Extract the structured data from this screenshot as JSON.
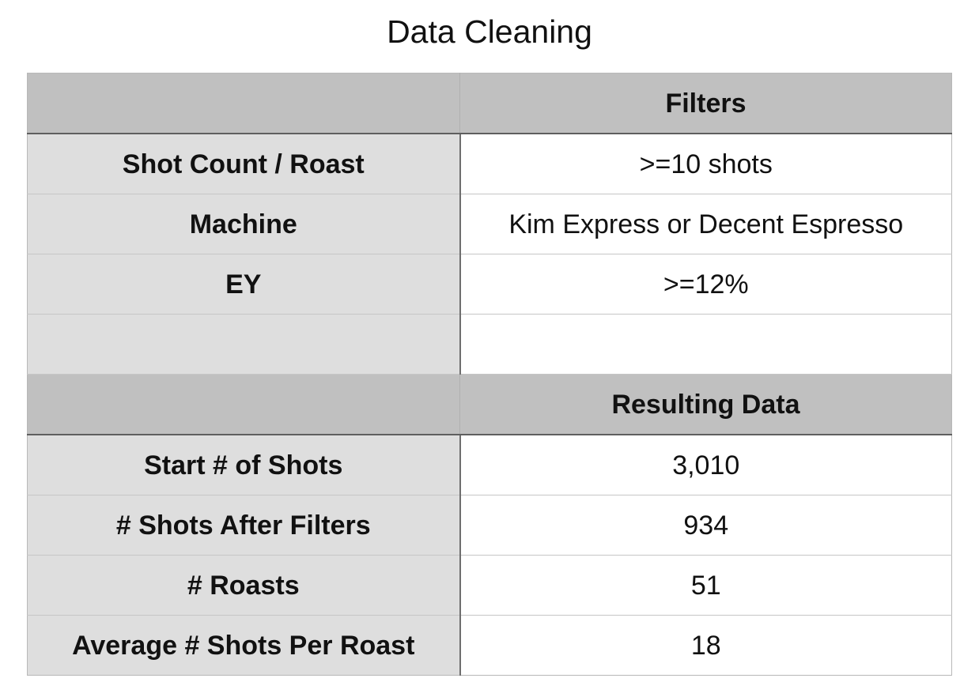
{
  "title": "Data Cleaning",
  "table": {
    "filters_header": {
      "label": "",
      "value": "Filters"
    },
    "filters": [
      {
        "label": "Shot Count / Roast",
        "value": ">=10 shots"
      },
      {
        "label": "Machine",
        "value": "Kim Express or Decent Espresso"
      },
      {
        "label": "EY",
        "value": ">=12%"
      },
      {
        "label": "",
        "value": ""
      }
    ],
    "results_header": {
      "label": "",
      "value": "Resulting Data"
    },
    "results": [
      {
        "label": "Start # of Shots",
        "value": "3,010"
      },
      {
        "label": "# Shots After Filters",
        "value": "934"
      },
      {
        "label": "# Roasts",
        "value": "51"
      },
      {
        "label": "Average # Shots Per Roast",
        "value": "18"
      }
    ]
  },
  "colors": {
    "header_bg": "#c0c0c0",
    "label_bg": "#dedede",
    "value_bg": "#ffffff",
    "text": "#111111"
  }
}
